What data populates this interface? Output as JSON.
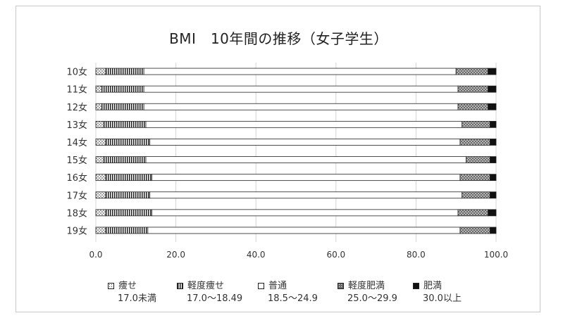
{
  "chart_data": {
    "type": "bar",
    "orientation": "horizontal",
    "stacked": true,
    "title": "BMI　10年間の推移（女子学生）",
    "categories": [
      "10女",
      "11女",
      "12女",
      "13女",
      "14女",
      "15女",
      "16女",
      "17女",
      "18女",
      "19女"
    ],
    "xlim": [
      0,
      100
    ],
    "xticks": [
      "0.0",
      "20.0",
      "40.0",
      "60.0",
      "80.0",
      "100.0"
    ],
    "grid": true,
    "legend_position": "bottom",
    "series": [
      {
        "name": "痩せ",
        "range": "17.0未満",
        "values": [
          2.5,
          1.5,
          1.5,
          2.0,
          2.5,
          2.0,
          2.5,
          2.5,
          2.5,
          2.5
        ]
      },
      {
        "name": "軽度痩せ",
        "range": "17.0～18.49",
        "values": [
          9.5,
          10.5,
          10.5,
          10.5,
          11.0,
          10.5,
          11.5,
          11.0,
          11.5,
          10.5
        ]
      },
      {
        "name": "普通",
        "range": "18.5～24.9",
        "values": [
          78.0,
          78.5,
          78.5,
          79.0,
          77.5,
          80.0,
          77.0,
          78.0,
          76.5,
          78.0
        ]
      },
      {
        "name": "軽度肥満",
        "range": "25.0～29.9",
        "values": [
          8.0,
          7.5,
          7.5,
          7.0,
          7.5,
          6.0,
          7.5,
          7.0,
          7.5,
          7.5
        ]
      },
      {
        "name": "肥満",
        "range": "30.0以上",
        "values": [
          2.0,
          2.0,
          2.0,
          1.5,
          1.5,
          1.5,
          1.5,
          1.5,
          2.0,
          1.5
        ]
      }
    ]
  }
}
